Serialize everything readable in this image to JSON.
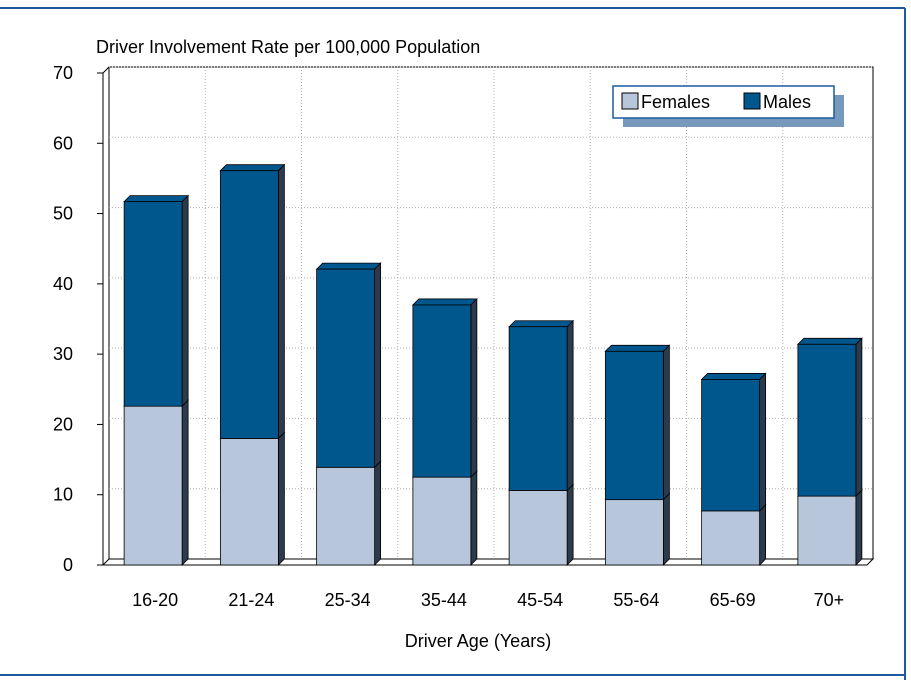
{
  "chart_data": {
    "type": "bar",
    "stacked": true,
    "three_d": true,
    "title": "Driver Involvement Rate per 100,000 Population",
    "xlabel": "Driver Age (Years)",
    "ylabel": "",
    "ylim": [
      0,
      70
    ],
    "yticks": [
      "0",
      "10",
      "20",
      "30",
      "40",
      "50",
      "60",
      "70"
    ],
    "grid": true,
    "legend_position": "top-right",
    "categories": [
      "16-20",
      "21-24",
      "25-34",
      "35-44",
      "45-54",
      "55-64",
      "65-69",
      "70+"
    ],
    "series": [
      {
        "name": "Females",
        "values": [
          22.6,
          18.0,
          13.9,
          12.5,
          10.6,
          9.3,
          7.7,
          9.8
        ],
        "color": "#b7c6da"
      },
      {
        "name": "Males",
        "values": [
          29.1,
          38.1,
          28.2,
          24.5,
          23.3,
          21.1,
          18.7,
          21.6
        ],
        "color": "#00578e"
      }
    ]
  },
  "colors": {
    "border": "#1c5aa0",
    "legend_shadow": "#7799bb",
    "bar_side": "#2c3a4c",
    "grid": "#b0b0b0"
  }
}
